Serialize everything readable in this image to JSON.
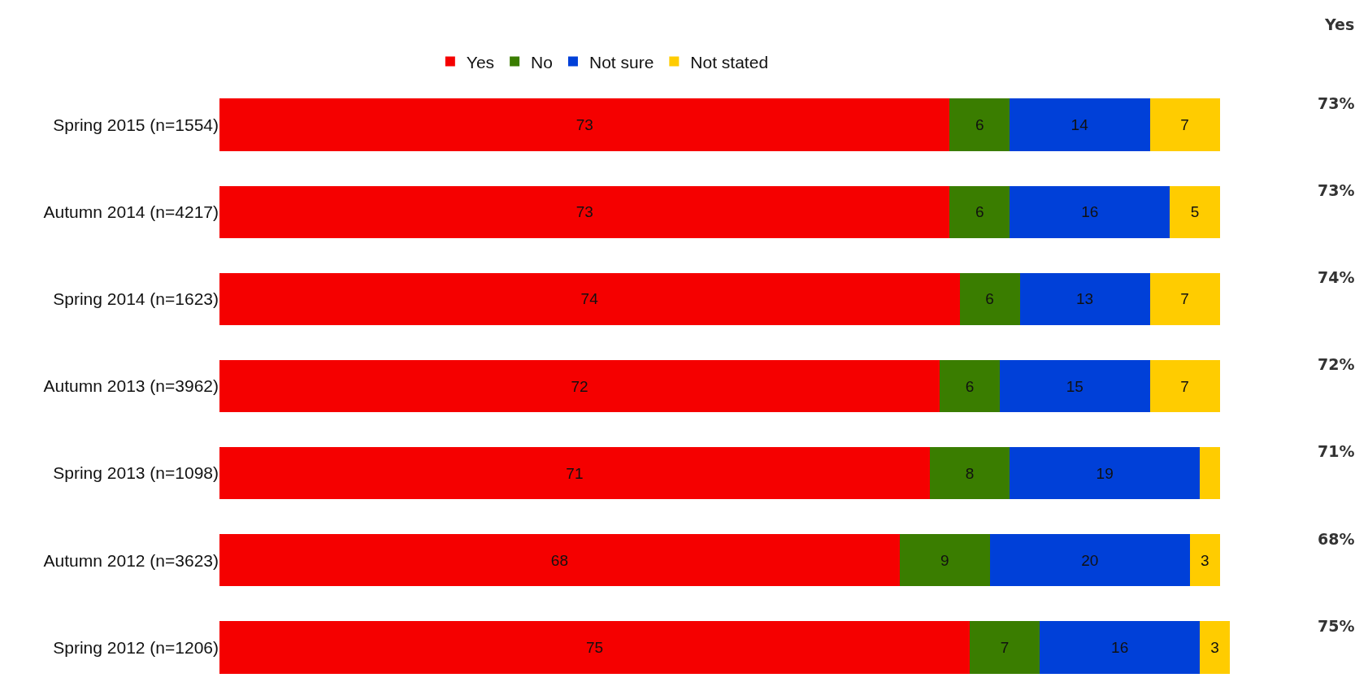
{
  "chart_data": {
    "type": "bar",
    "orientation": "horizontal",
    "stacked": true,
    "categories": [
      "Spring 2015 (n=1554)",
      "Autumn 2014 (n=4217)",
      "Spring 2014 (n=1623)",
      "Autumn 2013 (n=3962)",
      "Spring 2013 (n=1098)",
      "Autumn 2012 (n=3623)",
      "Spring 2012 (n=1206)"
    ],
    "series": [
      {
        "name": "Yes",
        "color": "#f50000",
        "values": [
          73,
          73,
          74,
          72,
          71,
          68,
          75
        ],
        "value_labels": [
          "73",
          "73",
          "74",
          "72",
          "71",
          "68",
          "75"
        ]
      },
      {
        "name": "No",
        "color": "#3a7d00",
        "values": [
          6,
          6,
          6,
          6,
          8,
          9,
          7
        ],
        "value_labels": [
          "6",
          "6",
          "6",
          "6",
          "8",
          "9",
          "7"
        ]
      },
      {
        "name": "Not sure",
        "color": "#0040d8",
        "values": [
          14,
          16,
          13,
          15,
          19,
          20,
          16
        ],
        "value_labels": [
          "14",
          "16",
          "13",
          "15",
          "19",
          "20",
          "16"
        ]
      },
      {
        "name": "Not stated",
        "color": "#ffcc00",
        "values": [
          7,
          5,
          7,
          7,
          2,
          3,
          3
        ],
        "value_labels": [
          "7",
          "5",
          "7",
          "7",
          null,
          "3",
          "3"
        ]
      }
    ],
    "annotations": [
      "Yes",
      "73%",
      "73%",
      "74%",
      "72%",
      "71%",
      "68%",
      "75%"
    ],
    "legend": "top"
  }
}
